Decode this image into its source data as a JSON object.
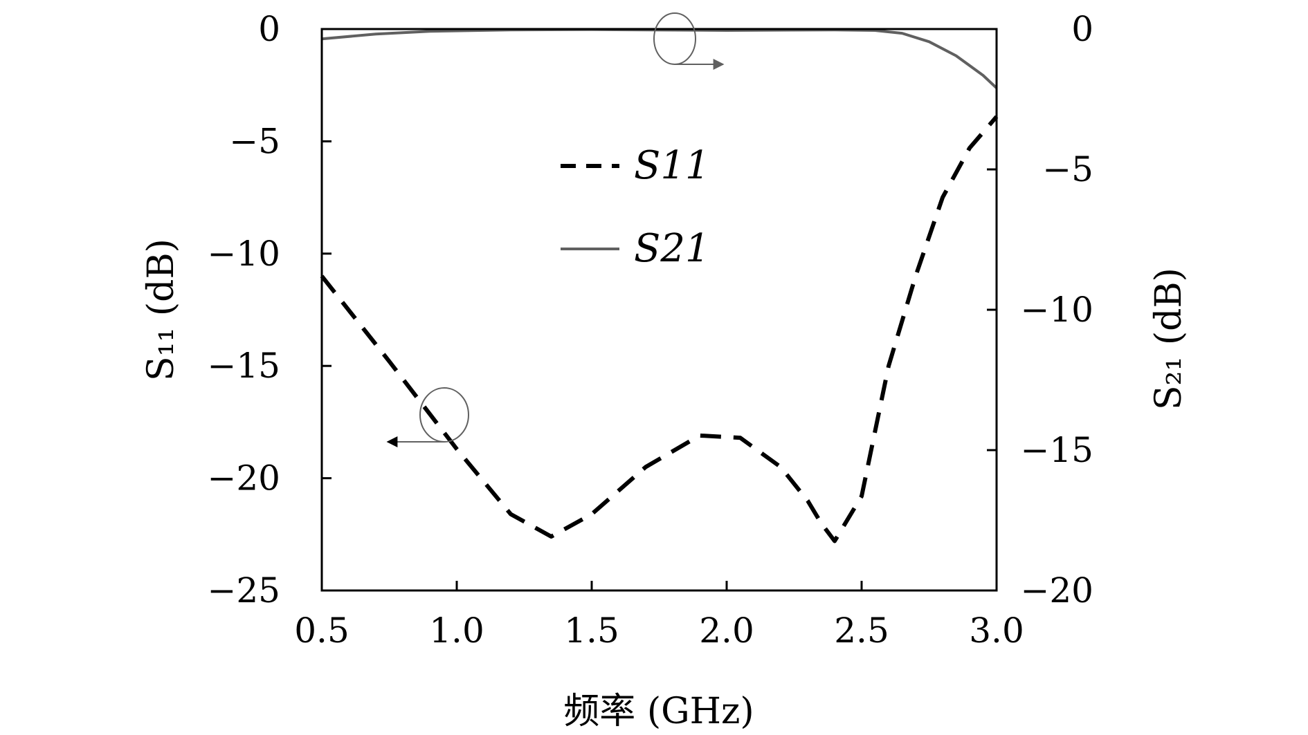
{
  "chart_data": {
    "type": "line",
    "xlabel": "频率 (GHz)",
    "ylabel_left": "S₁₁ (dB)",
    "ylabel_right": "S₂₁ (dB)",
    "xlim": [
      0.5,
      3.0
    ],
    "ylim_left": [
      -25,
      0
    ],
    "ylim_right": [
      -20,
      0
    ],
    "x_ticks": [
      0.5,
      1.0,
      1.5,
      2.0,
      2.5,
      3.0
    ],
    "x_tick_labels": [
      "0.5",
      "1.0",
      "1.5",
      "2.0",
      "2.5",
      "3.0"
    ],
    "y_left_ticks": [
      0,
      -5,
      -10,
      -15,
      -20,
      -25
    ],
    "y_left_tick_labels": [
      "0",
      "−5",
      "−10",
      "−15",
      "−20",
      "−25"
    ],
    "y_right_ticks": [
      0,
      -5,
      -10,
      -15,
      -20
    ],
    "y_right_tick_labels": [
      "0",
      "−5",
      "−10",
      "−15",
      "−20"
    ],
    "grid": false,
    "legend_position": "upper-center",
    "series": [
      {
        "name": "S11",
        "legend_label": "S11",
        "axis": "left",
        "style": "dashed",
        "color": "#000000",
        "x": [
          0.5,
          0.75,
          1.0,
          1.2,
          1.35,
          1.5,
          1.7,
          1.9,
          2.05,
          2.2,
          2.3,
          2.35,
          2.4,
          2.5,
          2.6,
          2.7,
          2.8,
          2.9,
          3.0
        ],
        "values": [
          -11.0,
          -14.8,
          -18.7,
          -21.6,
          -22.6,
          -21.6,
          -19.5,
          -18.1,
          -18.2,
          -19.5,
          -21.0,
          -22.0,
          -22.8,
          -20.8,
          -15.0,
          -11.0,
          -7.5,
          -5.3,
          -3.9
        ]
      },
      {
        "name": "S21",
        "legend_label": "S21",
        "axis": "right",
        "style": "solid",
        "color": "#606060",
        "x": [
          0.5,
          0.7,
          0.9,
          1.2,
          1.5,
          2.0,
          2.4,
          2.55,
          2.65,
          2.75,
          2.85,
          2.95,
          3.0
        ],
        "values": [
          -0.35,
          -0.18,
          -0.08,
          -0.03,
          -0.02,
          -0.05,
          -0.03,
          -0.05,
          -0.15,
          -0.45,
          -0.95,
          -1.65,
          -2.1
        ]
      }
    ],
    "annotations": [
      {
        "type": "circle-arrow",
        "series": "S11",
        "points_to": "left axis"
      },
      {
        "type": "circle-arrow",
        "series": "S21",
        "points_to": "right axis"
      }
    ]
  }
}
